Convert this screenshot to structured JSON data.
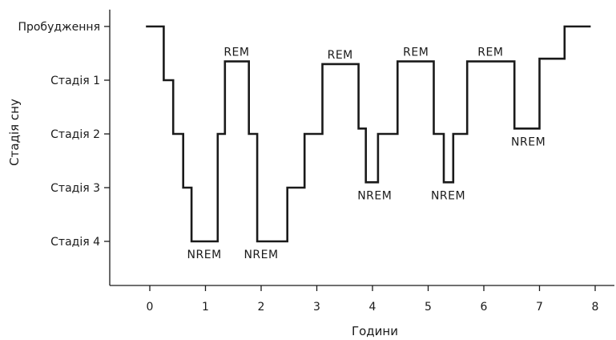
{
  "chart_data": {
    "type": "line",
    "title": "",
    "xlabel": "Години",
    "ylabel": "Стадія сну",
    "xlim": [
      -0.7,
      8.4
    ],
    "x_ticks": [
      0,
      1,
      2,
      3,
      4,
      5,
      6,
      7,
      8
    ],
    "y_categories": [
      "Пробудження",
      "Стадія 1",
      "Стадія 2",
      "Стадія 3",
      "Стадія 4"
    ],
    "grid": false,
    "legend": "none",
    "line_color": "#1a1a1a",
    "series": [
      {
        "values_note": "stepped hypnogram; y is stage level (0 = Пробудження … 4 = Стадія 4)",
        "points": [
          [
            -0.05,
            0
          ],
          [
            0.25,
            0
          ],
          [
            0.25,
            1
          ],
          [
            0.42,
            1
          ],
          [
            0.42,
            2
          ],
          [
            0.6,
            2
          ],
          [
            0.6,
            3
          ],
          [
            0.75,
            3
          ],
          [
            0.75,
            4
          ],
          [
            1.22,
            4
          ],
          [
            1.22,
            2
          ],
          [
            1.35,
            2
          ],
          [
            1.35,
            0.65
          ],
          [
            1.78,
            0.65
          ],
          [
            1.78,
            2
          ],
          [
            1.93,
            2
          ],
          [
            1.93,
            4
          ],
          [
            2.47,
            4
          ],
          [
            2.47,
            3
          ],
          [
            2.78,
            3
          ],
          [
            2.78,
            2
          ],
          [
            3.1,
            2
          ],
          [
            3.1,
            0.7
          ],
          [
            3.75,
            0.7
          ],
          [
            3.75,
            1.9
          ],
          [
            3.88,
            1.9
          ],
          [
            3.88,
            2.9
          ],
          [
            4.1,
            2.9
          ],
          [
            4.1,
            2
          ],
          [
            4.45,
            2
          ],
          [
            4.45,
            0.65
          ],
          [
            5.1,
            0.65
          ],
          [
            5.1,
            2
          ],
          [
            5.28,
            2
          ],
          [
            5.28,
            2.9
          ],
          [
            5.45,
            2.9
          ],
          [
            5.45,
            2
          ],
          [
            5.7,
            2
          ],
          [
            5.7,
            0.65
          ],
          [
            6.55,
            0.65
          ],
          [
            6.55,
            1.9
          ],
          [
            7.0,
            1.9
          ],
          [
            7.0,
            0.6
          ],
          [
            7.45,
            0.6
          ],
          [
            7.45,
            0
          ],
          [
            7.9,
            0
          ]
        ]
      }
    ],
    "annotations": [
      {
        "text": "REM",
        "x": 1.56,
        "y": 0.65,
        "pos": "above"
      },
      {
        "text": "NREM",
        "x": 0.98,
        "y": 4,
        "pos": "below"
      },
      {
        "text": "NREM",
        "x": 2.0,
        "y": 4,
        "pos": "below"
      },
      {
        "text": "REM",
        "x": 3.42,
        "y": 0.7,
        "pos": "above"
      },
      {
        "text": "NREM",
        "x": 4.04,
        "y": 2.9,
        "pos": "below"
      },
      {
        "text": "REM",
        "x": 4.78,
        "y": 0.65,
        "pos": "above"
      },
      {
        "text": "NREM",
        "x": 5.36,
        "y": 2.9,
        "pos": "below"
      },
      {
        "text": "REM",
        "x": 6.12,
        "y": 0.65,
        "pos": "above"
      },
      {
        "text": "NREM",
        "x": 6.8,
        "y": 1.9,
        "pos": "below"
      }
    ]
  }
}
